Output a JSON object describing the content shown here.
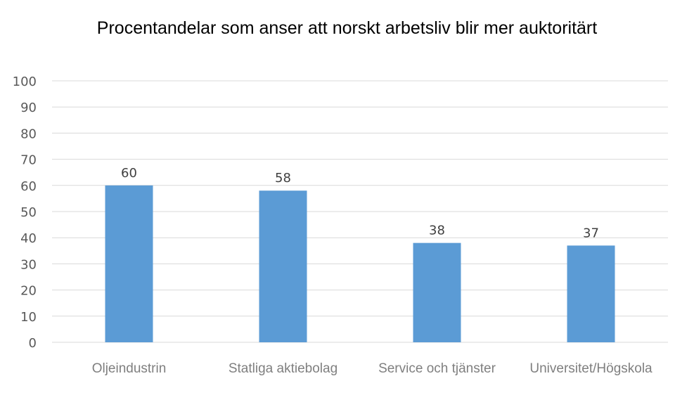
{
  "chart_data": {
    "type": "bar",
    "title": "Procentandelar som anser att norskt arbetsliv blir mer auktoritärt",
    "categories": [
      "Oljeindustrin",
      "Statliga aktiebolag",
      "Service och tjänster",
      "Universitet/Högskola"
    ],
    "values": [
      60,
      58,
      38,
      37
    ],
    "data_labels": [
      "60",
      "58",
      "38",
      "37"
    ],
    "xlabel": "",
    "ylabel": "",
    "ylim": [
      0,
      100
    ],
    "yticks": [
      0,
      10,
      20,
      30,
      40,
      50,
      60,
      70,
      80,
      90,
      100
    ],
    "grid": true,
    "legend": "none",
    "bar_color": "#5b9bd5"
  }
}
